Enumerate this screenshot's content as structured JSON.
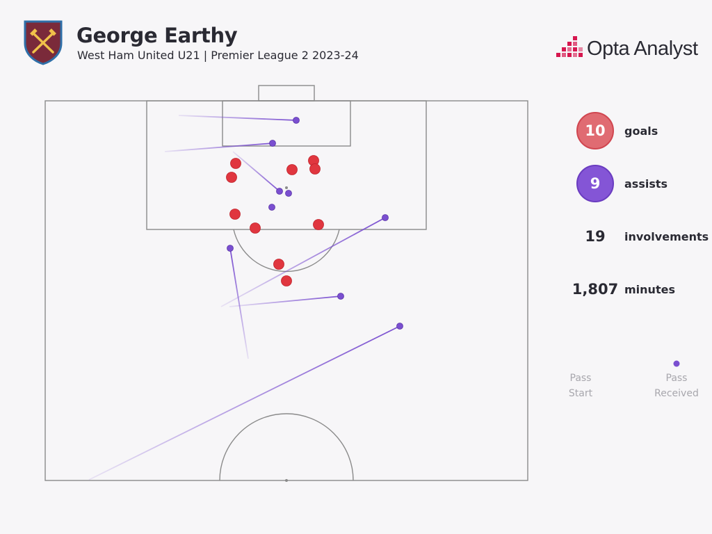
{
  "header": {
    "crest_text": "WEST HAM UNITED",
    "player_name": "George Earthy",
    "subtitle": "West Ham United U21 | Premier League 2 2023-24",
    "brand_name": "Opta Analyst"
  },
  "stats": {
    "goals_value": "10",
    "goals_label": "goals",
    "assists_value": "9",
    "assists_label": "assists",
    "involvements_value": "19",
    "involvements_label": "involvements",
    "minutes_value": "1,807",
    "minutes_label": "minutes"
  },
  "legend": {
    "start_label_line1": "Pass",
    "start_label_line2": "Start",
    "end_label_line1": "Pass",
    "end_label_line2": "Received"
  },
  "colors": {
    "goal": "#e0363f",
    "assist": "#7a4fd0",
    "goal_badge": "#e06b72",
    "assist_badge": "#8455d6",
    "pitch_line": "#8a8a8a",
    "brand_accent": "#d6174f"
  }
}
